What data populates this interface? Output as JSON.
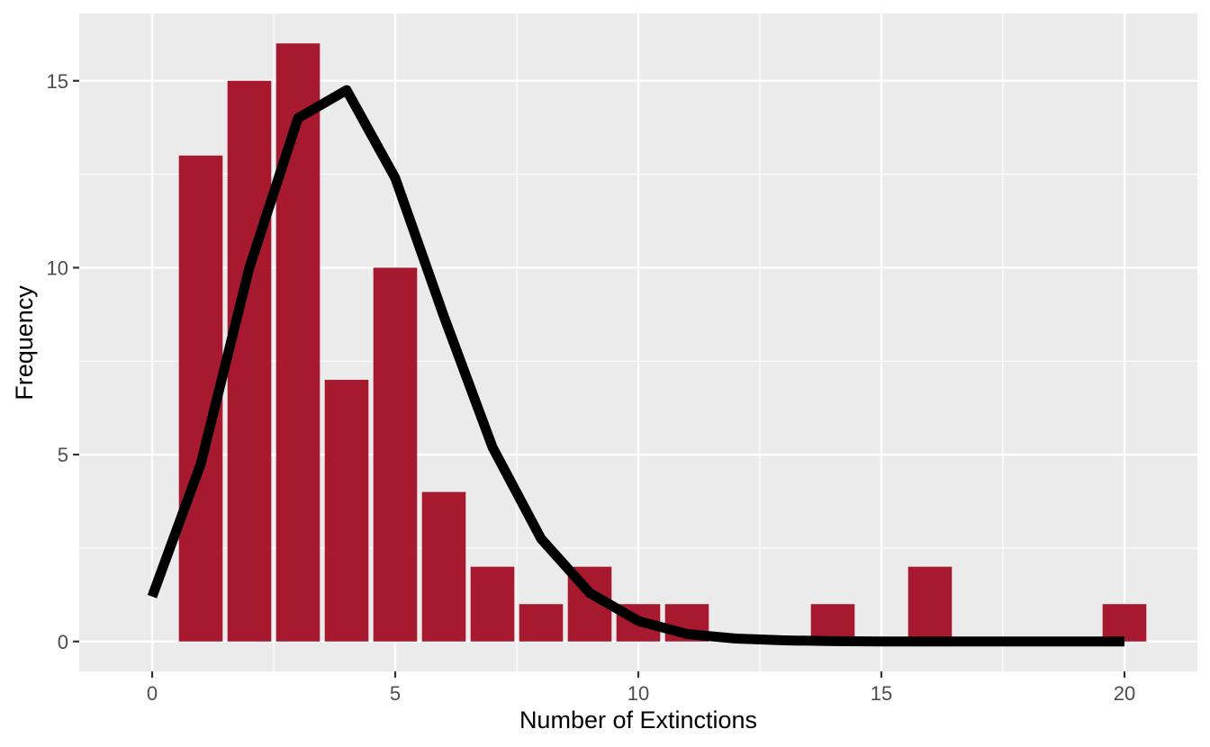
{
  "chart_data": {
    "type": "bar",
    "title": "",
    "xlabel": "Number of Extinctions",
    "ylabel": "Frequency",
    "xlim": [
      -1.5,
      21.5
    ],
    "ylim": [
      -0.8,
      16.8
    ],
    "grid": true,
    "x_ticks": [
      0,
      5,
      10,
      15,
      20
    ],
    "x_tick_labels": [
      "0",
      "5",
      "10",
      "15",
      "20"
    ],
    "y_ticks": [
      0,
      5,
      10,
      15
    ],
    "y_tick_labels": [
      "0",
      "5",
      "10",
      "15"
    ],
    "bars": {
      "x": [
        1,
        2,
        3,
        4,
        5,
        6,
        7,
        8,
        9,
        10,
        11,
        14,
        16,
        20
      ],
      "values": [
        13,
        15,
        16,
        7,
        10,
        4,
        2,
        1,
        2,
        1,
        1,
        1,
        2,
        1
      ],
      "color": "#A6192E"
    },
    "curve": {
      "type": "line",
      "x": [
        0,
        1,
        2,
        3,
        4,
        5,
        6,
        7,
        8,
        9,
        10,
        11,
        12,
        13,
        14,
        15,
        16,
        17,
        18,
        19,
        20
      ],
      "values": [
        1.2,
        4.75,
        10.0,
        14.0,
        14.75,
        12.4,
        8.7,
        5.2,
        2.75,
        1.3,
        0.55,
        0.2,
        0.08,
        0.03,
        0.01,
        0.0,
        0.0,
        0.0,
        0.0,
        0.0,
        0.0
      ],
      "color": "#000000"
    },
    "colors": {
      "panel_background": "#EBEBEB",
      "grid_line": "#FFFFFF",
      "bar_fill": "#A6192E",
      "line": "#000000"
    }
  }
}
